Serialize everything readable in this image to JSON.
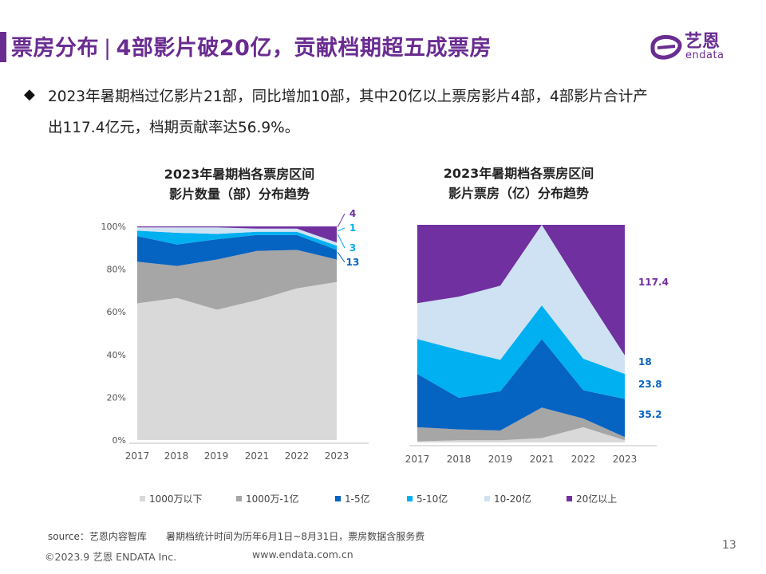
{
  "header": {
    "section": "票房分布",
    "title": "4部影片破20亿，贡献档期超五成票房",
    "brand_cn": "艺恩",
    "brand_en": "endata",
    "accent": "#6a2c91"
  },
  "summary": {
    "bullet": "◆",
    "line1": "2023年暑期档过亿影片21部，同比增加10部，其中20亿以上票房影片4部，4部影片合计产",
    "line2": "出117.4亿元，档期贡献率达56.9%。"
  },
  "chart_data": [
    {
      "type": "area",
      "stacked": "percent",
      "title": [
        "2023年暑期档各票房区间",
        "影片数量（部）分布趋势"
      ],
      "x": [
        "2017",
        "2018",
        "2019",
        "2021",
        "2022",
        "2023"
      ],
      "ylim": [
        0,
        100
      ],
      "yticks": [
        "0%",
        "20%",
        "40%",
        "60%",
        "80%",
        "100%"
      ],
      "grid": false,
      "series": [
        {
          "name": "1000万以下",
          "color": "#d9d9d9",
          "values": [
            64,
            66.5,
            61,
            65.5,
            71,
            74
          ]
        },
        {
          "name": "1000万-1亿",
          "color": "#a6a6a6",
          "values": [
            19.5,
            15,
            23.5,
            23,
            18,
            10.5
          ]
        },
        {
          "name": "1-5亿",
          "color": "#0563c1",
          "values": [
            12,
            10,
            9.5,
            7.5,
            7,
            4.5
          ]
        },
        {
          "name": "5-10亿",
          "color": "#00b0f0",
          "values": [
            2.5,
            5.5,
            2.5,
            1.5,
            1.5,
            2
          ]
        },
        {
          "name": "10-20亿",
          "color": "#cfe2f3",
          "values": [
            1.5,
            2.5,
            3,
            1.5,
            1.5,
            1.5
          ]
        },
        {
          "name": "20亿以上",
          "color": "#7030a0",
          "values": [
            0.5,
            0.5,
            0.5,
            1,
            1,
            7.5
          ]
        }
      ],
      "annotations": [
        {
          "text": "4",
          "color": "#7030a0",
          "series": "20亿以上"
        },
        {
          "text": "1",
          "color": "#00b0f0",
          "series": "10-20亿"
        },
        {
          "text": "3",
          "color": "#00b0f0",
          "series": "5-10亿"
        },
        {
          "text": "13",
          "color": "#0563c1",
          "series": "1-5亿"
        }
      ]
    },
    {
      "type": "area",
      "stacked": "percent",
      "title": [
        "2023年暑期档各票房区间",
        "影片票房（亿）分布趋势"
      ],
      "x": [
        "2017",
        "2018",
        "2019",
        "2021",
        "2022",
        "2023"
      ],
      "ylim": [
        0,
        100
      ],
      "grid": false,
      "series": [
        {
          "name": "1000万以下",
          "color": "#d9d9d9",
          "values": [
            0.5,
            1,
            1,
            2,
            7,
            1
          ]
        },
        {
          "name": "1000万-1亿",
          "color": "#a6a6a6",
          "values": [
            6.5,
            5,
            4.5,
            14,
            4,
            1.5
          ]
        },
        {
          "name": "1-5亿",
          "color": "#0563c1",
          "values": [
            24.5,
            14.5,
            18,
            31.5,
            13,
            17.5
          ]
        },
        {
          "name": "5-10亿",
          "color": "#00b0f0",
          "values": [
            16,
            22,
            14.5,
            15.5,
            14.5,
            11.5
          ]
        },
        {
          "name": "10-20亿",
          "color": "#cfe2f3",
          "values": [
            16.5,
            24.5,
            34,
            37,
            31,
            8.5
          ]
        },
        {
          "name": "20亿以上",
          "color": "#7030a0",
          "values": [
            36,
            33,
            28,
            0,
            30.5,
            60
          ]
        }
      ],
      "annotations": [
        {
          "text": "117.4",
          "color": "#7030a0",
          "series": "20亿以上"
        },
        {
          "text": "18",
          "color": "#0563c1",
          "series": "10-20亿"
        },
        {
          "text": "23.8",
          "color": "#0563c1",
          "series": "5-10亿"
        },
        {
          "text": "35.2",
          "color": "#0563c1",
          "series": "1-5亿"
        }
      ]
    }
  ],
  "legend": [
    {
      "label": "1000万以下",
      "color": "#d9d9d9"
    },
    {
      "label": "1000万-1亿",
      "color": "#a6a6a6"
    },
    {
      "label": "1-5亿",
      "color": "#0563c1"
    },
    {
      "label": "5-10亿",
      "color": "#00b0f0"
    },
    {
      "label": "10-20亿",
      "color": "#cfe2f3"
    },
    {
      "label": "20亿以上",
      "color": "#7030a0"
    }
  ],
  "footer": {
    "source": "source：艺恩内容智库",
    "note": "暑期档统计时间为历年6月1日~8月31日，票房数据含服务费",
    "copyright": "©2023.9 艺恩 ENDATA Inc.",
    "website": "www.endata.com.cn",
    "page": "13"
  }
}
